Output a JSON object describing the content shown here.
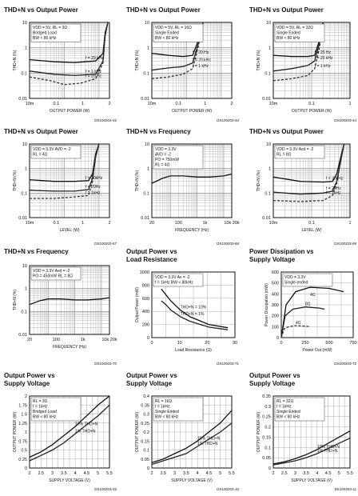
{
  "chart_data": [
    {
      "type": "line",
      "title": "THD+N vs Output Power",
      "xlabel": "OUTPUT POWER (W)",
      "ylabel": "THD+N (%)",
      "x_scale": "log",
      "y_scale": "log",
      "xlim": [
        0.01,
        2
      ],
      "ylim": [
        0.01,
        10
      ],
      "xticks": [
        "10m",
        "0.1",
        "1",
        "2"
      ],
      "yticks": [
        "10",
        "1",
        "0.1",
        "0.01"
      ],
      "legend": [
        "VDD = 5V, RL = 3Ω",
        "Bridged Load",
        "BW < 80 kHz"
      ],
      "annotations": [
        "f = 20 kHz",
        "f = 1 kHz",
        "f = 20 Hz"
      ],
      "series": [
        {
          "name": "f = 20 kHz",
          "x": [
            0.01,
            0.05,
            0.2,
            0.8,
            1.3,
            1.5,
            1.8
          ],
          "y": [
            0.34,
            0.28,
            0.26,
            0.3,
            0.6,
            4,
            10
          ]
        },
        {
          "name": "f = 1 kHz",
          "x": [
            0.01,
            0.05,
            0.2,
            0.8,
            1.3,
            1.5,
            1.8
          ],
          "y": [
            0.12,
            0.09,
            0.08,
            0.09,
            0.3,
            3,
            10
          ]
        },
        {
          "name": "f = 20 Hz",
          "x": [
            0.01,
            0.04,
            0.1,
            0.3,
            0.8,
            1.3,
            1.5,
            1.8
          ],
          "y": [
            0.07,
            0.05,
            0.035,
            0.04,
            0.06,
            0.25,
            3,
            10
          ]
        }
      ],
      "footer": "DS100203-42"
    },
    {
      "type": "line",
      "title": "THD+N vs Output Power",
      "xlabel": "OUTPUT POWER (W)",
      "ylabel": "THD+N (%)",
      "x_scale": "log",
      "y_scale": "log",
      "xlim": [
        0.01,
        2
      ],
      "ylim": [
        0.01,
        10
      ],
      "xticks": [
        "10m",
        "0.1",
        "1",
        "2"
      ],
      "yticks": [
        "10",
        "1",
        "0.1",
        "0.01"
      ],
      "legend": [
        "VDD = 5V, RL = 16Ω",
        "Single Ended",
        "BW < 80 kHz"
      ],
      "annotations": [
        "f = 20 Hz",
        "f = 20 kHz",
        "f = 1 kHz"
      ],
      "series": [
        {
          "name": "f = 20 Hz",
          "x": [
            0.01,
            0.03,
            0.08,
            0.15,
            0.22,
            0.3
          ],
          "y": [
            0.6,
            0.5,
            0.45,
            0.5,
            2,
            10
          ]
        },
        {
          "name": "f = 20 kHz",
          "x": [
            0.01,
            0.03,
            0.08,
            0.15,
            0.22,
            0.3
          ],
          "y": [
            0.13,
            0.16,
            0.18,
            0.25,
            1.5,
            10
          ]
        },
        {
          "name": "f = 1 kHz",
          "x": [
            0.01,
            0.03,
            0.08,
            0.15,
            0.22,
            0.3
          ],
          "y": [
            0.06,
            0.07,
            0.09,
            0.15,
            1.2,
            10
          ]
        }
      ],
      "footer": "DS100203-43"
    },
    {
      "type": "line",
      "title": "THD+N vs Output Power",
      "xlabel": "OUTPUT POWER (W)",
      "ylabel": "THD+N (%)",
      "x_scale": "log",
      "y_scale": "log",
      "xlim": [
        0.01,
        1
      ],
      "ylim": [
        0.01,
        10
      ],
      "xticks": [
        "10m",
        "0.1",
        "1"
      ],
      "yticks": [
        "10",
        "1",
        "0.1",
        "0.01"
      ],
      "legend": [
        "VDD = 5V, RL = 32Ω",
        "Single Ended",
        "BW < 80 kHz"
      ],
      "annotations": [
        "f = 20 Hz",
        "f = 20 kHz",
        "f = 1 kHz"
      ],
      "series": [
        {
          "name": "f = 20 Hz",
          "x": [
            0.01,
            0.03,
            0.08,
            0.12,
            0.16,
            0.2
          ],
          "y": [
            0.5,
            0.45,
            0.45,
            0.5,
            2,
            10
          ]
        },
        {
          "name": "f = 20 kHz",
          "x": [
            0.01,
            0.03,
            0.08,
            0.12,
            0.16,
            0.2
          ],
          "y": [
            0.12,
            0.15,
            0.2,
            0.3,
            1.5,
            10
          ]
        },
        {
          "name": "f = 1 kHz",
          "x": [
            0.01,
            0.03,
            0.08,
            0.12,
            0.16,
            0.2
          ],
          "y": [
            0.05,
            0.06,
            0.08,
            0.15,
            1,
            10
          ]
        }
      ],
      "footer": "DS100203-44"
    },
    {
      "type": "line",
      "title": "THD+N vs Output Power",
      "xlabel": "LEVEL (W)",
      "ylabel": "THD+N (%)",
      "x_scale": "log",
      "y_scale": "log",
      "xlim": [
        0.01,
        2
      ],
      "ylim": [
        0.01,
        10
      ],
      "xticks": [
        "10m",
        "0.1",
        "1",
        "2"
      ],
      "yticks": [
        "10",
        "1",
        "0.1",
        "0.01"
      ],
      "legend": [
        "VDD = 3.3V   AVD = -2",
        "RL = 4Ω"
      ],
      "annotations": [
        "f = 20kHz",
        "f = 20Hz",
        "f = 1kHz"
      ],
      "series": [
        {
          "name": "f = 20kHz",
          "x": [
            0.01,
            0.05,
            0.2,
            0.5,
            0.65,
            0.8,
            1
          ],
          "y": [
            0.35,
            0.3,
            0.3,
            0.32,
            0.6,
            4,
            10
          ]
        },
        {
          "name": "f = 20Hz",
          "x": [
            0.01,
            0.05,
            0.2,
            0.5,
            0.65,
            0.8,
            1
          ],
          "y": [
            0.13,
            0.12,
            0.12,
            0.14,
            0.4,
            3,
            10
          ]
        },
        {
          "name": "f = 1kHz",
          "x": [
            0.01,
            0.05,
            0.2,
            0.5,
            0.65,
            0.8,
            1
          ],
          "y": [
            0.06,
            0.06,
            0.07,
            0.08,
            0.3,
            3,
            10
          ]
        }
      ],
      "footer": "DS100203-67"
    },
    {
      "type": "line",
      "title": "THD+N vs Frequency",
      "xlabel": "FREQUENCY (Hz)",
      "ylabel": "THD+N (%)",
      "x_scale": "log",
      "y_scale": "log",
      "xlim": [
        20,
        20000
      ],
      "ylim": [
        0.01,
        10
      ],
      "xticks": [
        "20",
        "100",
        "1k",
        "10k 20k"
      ],
      "yticks": [
        "10",
        "1",
        "0.1",
        "0.01"
      ],
      "legend": [
        "VDD = 3.3V",
        "AVD = -2",
        "PO = 750mW",
        "RL = 4Ω"
      ],
      "series": [
        {
          "name": "THD+N",
          "x": [
            20,
            50,
            100,
            300,
            1000,
            3000,
            10000,
            20000
          ],
          "y": [
            0.25,
            0.4,
            0.5,
            0.5,
            0.45,
            0.45,
            0.5,
            0.6
          ]
        }
      ],
      "footer": "DS100203-68"
    },
    {
      "type": "line",
      "title": "THD+N vs Output Power",
      "xlabel": "LEVEL (W)",
      "ylabel": "THD+N (%)",
      "x_scale": "log",
      "y_scale": "log",
      "xlim": [
        0.01,
        1
      ],
      "ylim": [
        0.01,
        10
      ],
      "xticks": [
        "10m",
        "0.1",
        "1"
      ],
      "yticks": [
        "10",
        "1",
        "0.1",
        "0.01"
      ],
      "legend": [
        "VDD = 3.3V   Avd = -2",
        "RL = 8Ω"
      ],
      "annotations": [
        "f = 20kHz",
        "f = 20Hz",
        "f = 1kHz"
      ],
      "series": [
        {
          "name": "f = 20kHz",
          "x": [
            0.01,
            0.05,
            0.2,
            0.35,
            0.45,
            0.6,
            0.7
          ],
          "y": [
            0.45,
            0.3,
            0.28,
            0.3,
            0.6,
            4,
            10
          ]
        },
        {
          "name": "f = 20Hz",
          "x": [
            0.01,
            0.05,
            0.2,
            0.35,
            0.45,
            0.6,
            0.7
          ],
          "y": [
            0.11,
            0.09,
            0.1,
            0.12,
            0.3,
            3,
            10
          ]
        },
        {
          "name": "f = 1kHz",
          "x": [
            0.01,
            0.05,
            0.2,
            0.35,
            0.45,
            0.6,
            0.7
          ],
          "y": [
            0.05,
            0.045,
            0.05,
            0.08,
            0.25,
            3,
            10
          ]
        }
      ],
      "footer": "DS100203-69"
    },
    {
      "type": "line",
      "title": "THD+N vs Frequency",
      "xlabel": "FREQUENCY (Hz)",
      "ylabel": "THD+N (%)",
      "x_scale": "log",
      "y_scale": "log",
      "xlim": [
        20,
        20000
      ],
      "ylim": [
        0.01,
        10
      ],
      "xticks": [
        "20",
        "100",
        "1k",
        "10k 20k"
      ],
      "yticks": [
        "10",
        "1",
        "0.1",
        "0.01"
      ],
      "legend": [
        "VDD = 3.3V   Avd = -2",
        "PO = 450mW   RL = 8Ω"
      ],
      "series": [
        {
          "name": "THD+N",
          "x": [
            20,
            50,
            100,
            300,
            1000,
            3000,
            10000,
            20000
          ],
          "y": [
            0.2,
            0.3,
            0.35,
            0.35,
            0.32,
            0.32,
            0.35,
            0.4
          ]
        }
      ],
      "footer": "DS100203-70"
    },
    {
      "type": "line",
      "title": "Output Power vs\nLoad Resistance",
      "xlabel": "Load Resistance (Ω)",
      "ylabel": "Output Power (mW)",
      "xlim": [
        0,
        35
      ],
      "ylim": [
        0,
        1000
      ],
      "xticks": [
        "0",
        "10",
        "20",
        "30"
      ],
      "yticks": [
        "1000",
        "800",
        "600",
        "400",
        "200",
        "0"
      ],
      "legend": [
        "VDD = 3.3V   Av = -2",
        "f = 1kHz   BW < 80kHz"
      ],
      "annotations": [
        "THD+N = 10%",
        "THD+N = 1%"
      ],
      "series": [
        {
          "name": "THD+N = 10%",
          "x": [
            4,
            6,
            8,
            12,
            16,
            24,
            32
          ],
          "y": [
            740,
            650,
            560,
            420,
            320,
            200,
            150
          ]
        },
        {
          "name": "THD+N = 1%",
          "x": [
            4,
            6,
            8,
            12,
            16,
            24,
            32
          ],
          "y": [
            560,
            500,
            420,
            320,
            250,
            160,
            120
          ]
        }
      ],
      "footer": "DS100203-71"
    },
    {
      "type": "line",
      "title": "Power Dissipation vs\nSupply Voltage",
      "xlabel": "Power Out (mW)",
      "ylabel": "Power Dissipation (mW)",
      "xlim": [
        0,
        750
      ],
      "ylim": [
        0,
        600
      ],
      "xticks": [
        "0",
        "250",
        "500",
        "750"
      ],
      "yticks": [
        "600",
        "500",
        "400",
        "300",
        "200",
        "100",
        "0"
      ],
      "legend": [
        "VDD = 3.3V",
        "Single-ended"
      ],
      "annotations": [
        "4Ω",
        "8Ω",
        "4Ω"
      ],
      "series": [
        {
          "name": "4Ω",
          "x": [
            0,
            50,
            150,
            300,
            500,
            650
          ],
          "y": [
            0,
            300,
            420,
            460,
            450,
            420
          ]
        },
        {
          "name": "8Ω",
          "x": [
            0,
            40,
            120,
            250,
            400,
            450
          ],
          "y": [
            0,
            200,
            260,
            280,
            270,
            260
          ]
        },
        {
          "name": "4Ω (lower)",
          "x": [
            0,
            30,
            80,
            150,
            250,
            300
          ],
          "y": [
            0,
            80,
            100,
            110,
            105,
            100
          ]
        }
      ],
      "footer": "DS100203-72"
    },
    {
      "type": "line",
      "title": "Output Power vs\nSupply Voltage",
      "xlabel": "SUPPLY VOLTAGE (V)",
      "ylabel": "OUTPUT POWER (W)",
      "xlim": [
        2,
        5.5
      ],
      "ylim": [
        0,
        2
      ],
      "xticks": [
        "2",
        "2.5",
        "3",
        "3.5",
        "4",
        "4.5",
        "5",
        "5.5"
      ],
      "yticks": [
        "2",
        "1.75",
        "1.5",
        "1.25",
        "1",
        "0.75",
        "0.5",
        "0.25",
        "0"
      ],
      "legend": [
        "RL = 3Ω",
        "f = 1kHz",
        "Bridged Load",
        "BW < 80 kHz"
      ],
      "annotations": [
        "10% THD+N",
        "1% THD+N"
      ],
      "series": [
        {
          "name": "10% THD+N",
          "x": [
            2,
            2.5,
            3,
            3.5,
            4,
            4.5,
            5,
            5.5
          ],
          "y": [
            0.3,
            0.45,
            0.65,
            0.9,
            1.15,
            1.45,
            1.75,
            2
          ]
        },
        {
          "name": "1% THD+N",
          "x": [
            2,
            2.5,
            3,
            3.5,
            4,
            4.5,
            5,
            5.5
          ],
          "y": [
            0.2,
            0.35,
            0.5,
            0.7,
            0.95,
            1.2,
            1.45,
            1.75
          ]
        }
      ],
      "footer": "DS100203-45"
    },
    {
      "type": "line",
      "title": "Output Power vs\nSupply Voltage",
      "xlabel": "SUPPLY VOLTAGE (V)",
      "ylabel": "OUTPUT POWER (W)",
      "xlim": [
        2,
        5.5
      ],
      "ylim": [
        0,
        0.4
      ],
      "xticks": [
        "2",
        "2.5",
        "3",
        "3.5",
        "4",
        "4.5",
        "5",
        "5.5"
      ],
      "yticks": [
        "0.4",
        "0.35",
        "0.3",
        "0.25",
        "0.2",
        "0.15",
        "0.1",
        "0.05",
        "0"
      ],
      "legend": [
        "RL = 16Ω",
        "f = 1kHz",
        "Single Ended",
        "BW < 80 kHz"
      ],
      "annotations": [
        "10% THD+N",
        "1% THD+N"
      ],
      "series": [
        {
          "name": "10% THD+N",
          "x": [
            2,
            2.5,
            3,
            3.5,
            4,
            4.5,
            5,
            5.5
          ],
          "y": [
            0.03,
            0.05,
            0.08,
            0.11,
            0.15,
            0.2,
            0.25,
            0.32
          ]
        },
        {
          "name": "1% THD+N",
          "x": [
            2,
            2.5,
            3,
            3.5,
            4,
            4.5,
            5,
            5.5
          ],
          "y": [
            0.02,
            0.04,
            0.06,
            0.08,
            0.12,
            0.16,
            0.2,
            0.25
          ]
        }
      ],
      "footer": "DS100203-10"
    },
    {
      "type": "line",
      "title": "Output Power vs\nSupply Voltage",
      "xlabel": "SUPPLY VOLTAGE (V)",
      "ylabel": "OUTPUT POWER (W)",
      "xlim": [
        2,
        5.5
      ],
      "ylim": [
        0,
        0.35
      ],
      "xticks": [
        "2",
        "2.5",
        "3",
        "3.5",
        "4",
        "4.5",
        "5",
        "5.5"
      ],
      "yticks": [
        "0.35",
        "0.3",
        "0.25",
        "0.2",
        "0.15",
        "0.1",
        "0.05",
        "0"
      ],
      "legend": [
        "RL = 32Ω",
        "f = 1kHz",
        "Single Ended",
        "BW < 80 kHz"
      ],
      "annotations": [
        "10% THD+N",
        "1% THD+N"
      ],
      "series": [
        {
          "name": "10% THD+N",
          "x": [
            2,
            2.5,
            3,
            3.5,
            4,
            4.5,
            5,
            5.5
          ],
          "y": [
            0.02,
            0.03,
            0.045,
            0.065,
            0.09,
            0.12,
            0.15,
            0.18
          ]
        },
        {
          "name": "1% THD+N",
          "x": [
            2,
            2.5,
            3,
            3.5,
            4,
            4.5,
            5,
            5.5
          ],
          "y": [
            0.015,
            0.025,
            0.035,
            0.05,
            0.07,
            0.095,
            0.12,
            0.145
          ]
        }
      ],
      "footer": "DS100203-11"
    }
  ]
}
